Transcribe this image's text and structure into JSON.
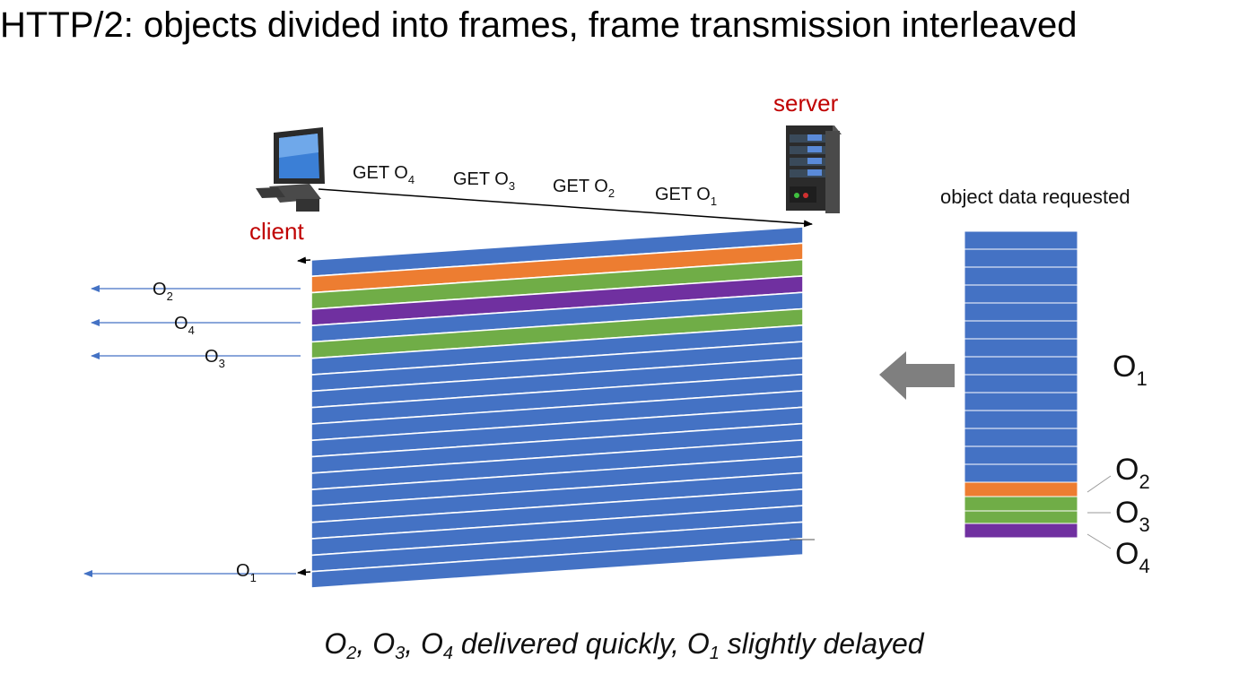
{
  "title": "HTTP/2: objects divided into frames, frame transmission interleaved",
  "labels": {
    "server": "server",
    "client": "client",
    "object_data_requested": "object data requested"
  },
  "requests": [
    {
      "text": "GET O",
      "sub": "4"
    },
    {
      "text": "GET O",
      "sub": "3"
    },
    {
      "text": "GET O",
      "sub": "2"
    },
    {
      "text": "GET O",
      "sub": "1"
    }
  ],
  "deliveries": [
    {
      "text": "O",
      "sub": "2"
    },
    {
      "text": "O",
      "sub": "4"
    },
    {
      "text": "O",
      "sub": "3"
    },
    {
      "text": "O",
      "sub": "1"
    }
  ],
  "object_labels": [
    {
      "text": "O",
      "sub": "1"
    },
    {
      "text": "O",
      "sub": "2"
    },
    {
      "text": "O",
      "sub": "3"
    },
    {
      "text": "O",
      "sub": "4"
    }
  ],
  "caption": {
    "parts": [
      {
        "text": "O",
        "sub": "2"
      },
      {
        "text": ", O",
        "sub": "3"
      },
      {
        "text": ", O",
        "sub": "4"
      },
      {
        "text": " delivered quickly, O",
        "sub": "1"
      },
      {
        "text": " slightly delayed",
        "sub": ""
      }
    ]
  },
  "colors": {
    "o1": "#4472c4",
    "o2": "#ed7d31",
    "o3": "#70ad47",
    "o4": "#7030a0",
    "label_red": "#c00000",
    "arrow_blue": "#4472c4",
    "big_arrow": "#7f7f7f"
  },
  "icons": [
    "computer-icon",
    "server-icon",
    "left-arrow-icon"
  ]
}
